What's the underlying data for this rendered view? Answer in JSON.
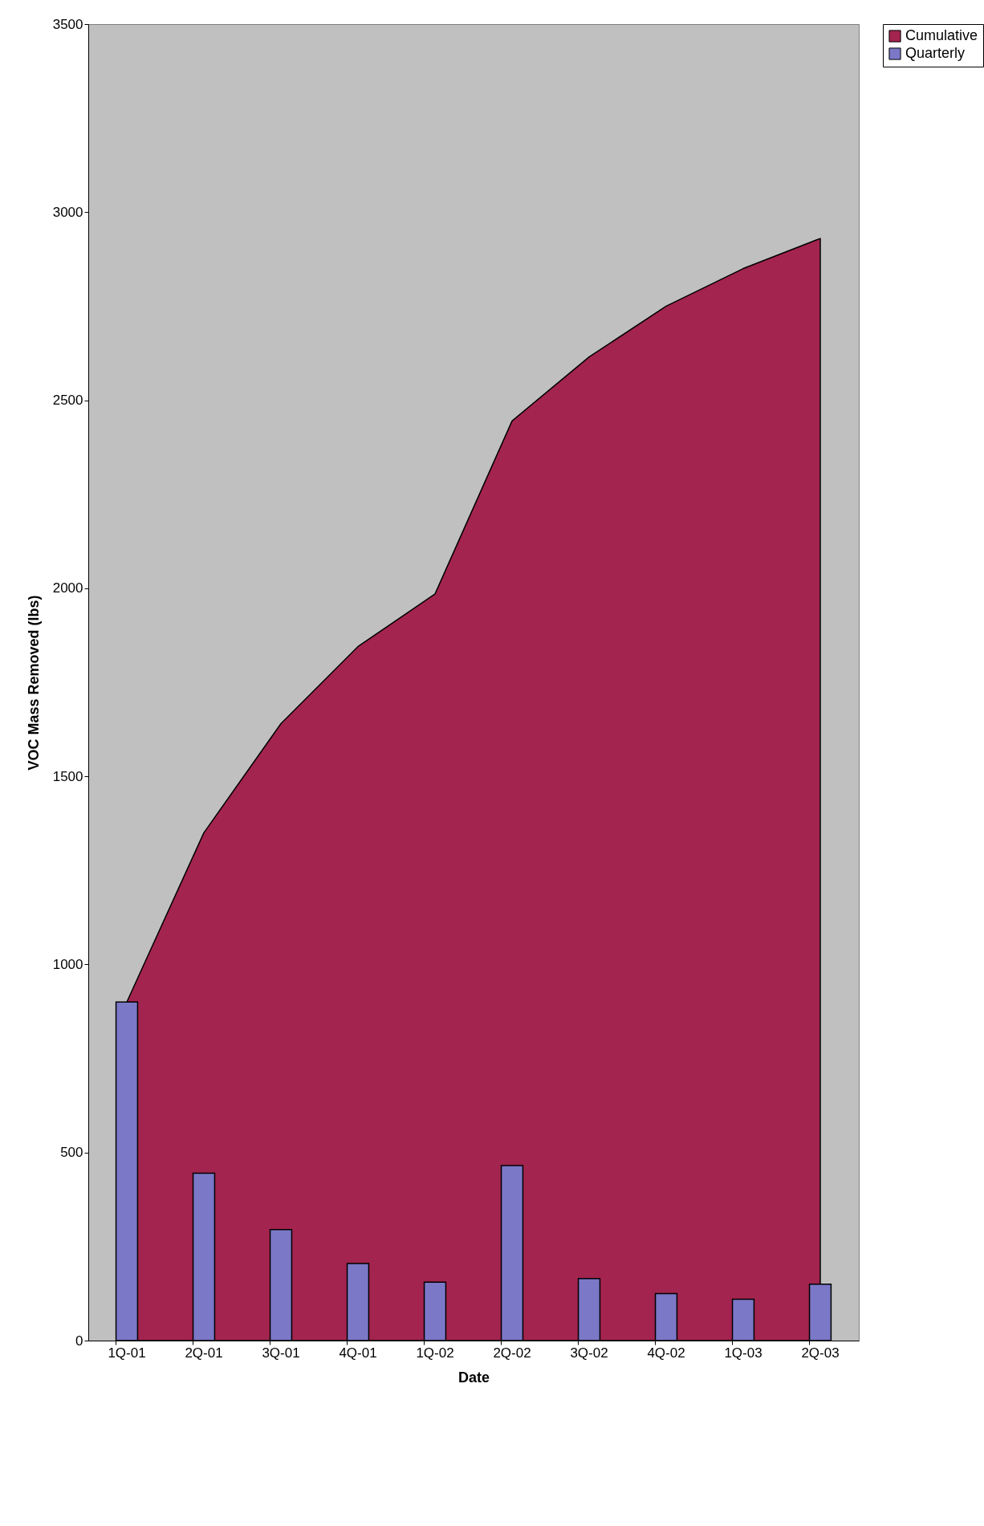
{
  "chart_data": {
    "type": "bar",
    "xlabel": "Date",
    "ylabel": "VOC Mass Removed (lbs)",
    "categories": [
      "1Q-01",
      "2Q-01",
      "3Q-01",
      "4Q-01",
      "1Q-02",
      "2Q-02",
      "3Q-02",
      "4Q-02",
      "1Q-03",
      "2Q-03"
    ],
    "series": [
      {
        "name": "Cumulative",
        "type": "area",
        "color": "#a3244f",
        "values": [
          900,
          1350,
          1640,
          1845,
          1985,
          2445,
          2615,
          2750,
          2850,
          2930
        ]
      },
      {
        "name": "Quarterly",
        "color": "#7b78c8",
        "values": [
          900,
          445,
          295,
          205,
          155,
          465,
          165,
          125,
          110,
          150
        ]
      }
    ],
    "ylim": [
      0,
      3500
    ],
    "yticks": [
      0,
      500,
      1000,
      1500,
      2000,
      2500,
      3000,
      3500
    ],
    "legend": "right"
  }
}
